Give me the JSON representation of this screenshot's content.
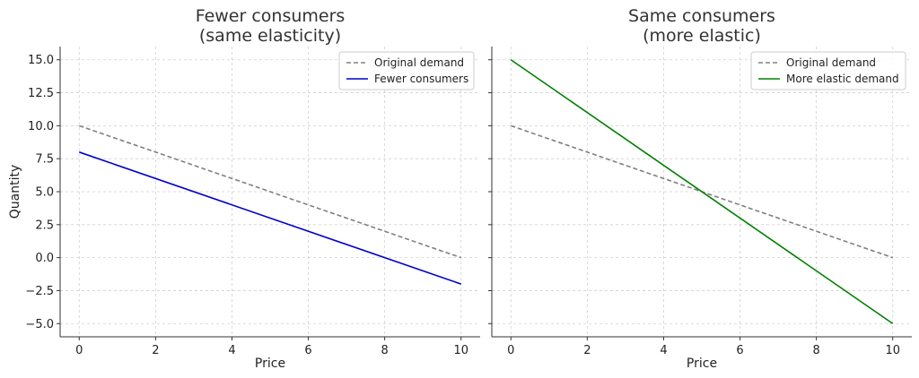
{
  "chart_data": [
    {
      "type": "line",
      "title": "Fewer consumers\n(same elasticity)",
      "xlabel": "Price",
      "ylabel": "Quantity",
      "xlim": [
        -0.5,
        10.5
      ],
      "ylim": [
        -6.0,
        16.0
      ],
      "xticks": [
        0,
        2,
        4,
        6,
        8,
        10
      ],
      "yticks": [
        -5.0,
        -2.5,
        0.0,
        2.5,
        5.0,
        7.5,
        10.0,
        12.5,
        15.0
      ],
      "grid": true,
      "legend_position": "top-right",
      "series": [
        {
          "name": "Original demand",
          "color": "#808080",
          "style": "dashed",
          "x": [
            0,
            10
          ],
          "y": [
            10,
            0
          ]
        },
        {
          "name": "Fewer consumers",
          "color": "#0000cc",
          "style": "solid",
          "x": [
            0,
            10
          ],
          "y": [
            8,
            -2
          ]
        }
      ]
    },
    {
      "type": "line",
      "title": "Same consumers\n(more elastic)",
      "xlabel": "Price",
      "ylabel": "",
      "xlim": [
        -0.5,
        10.5
      ],
      "ylim": [
        -6.0,
        16.0
      ],
      "xticks": [
        0,
        2,
        4,
        6,
        8,
        10
      ],
      "yticks": [
        -5.0,
        -2.5,
        0.0,
        2.5,
        5.0,
        7.5,
        10.0,
        12.5,
        15.0
      ],
      "show_ytick_labels": false,
      "grid": true,
      "legend_position": "top-right",
      "series": [
        {
          "name": "Original demand",
          "color": "#808080",
          "style": "dashed",
          "x": [
            0,
            10
          ],
          "y": [
            10,
            0
          ]
        },
        {
          "name": "More elastic demand",
          "color": "#008000",
          "style": "solid",
          "x": [
            0,
            10
          ],
          "y": [
            15,
            -5
          ]
        }
      ]
    }
  ]
}
